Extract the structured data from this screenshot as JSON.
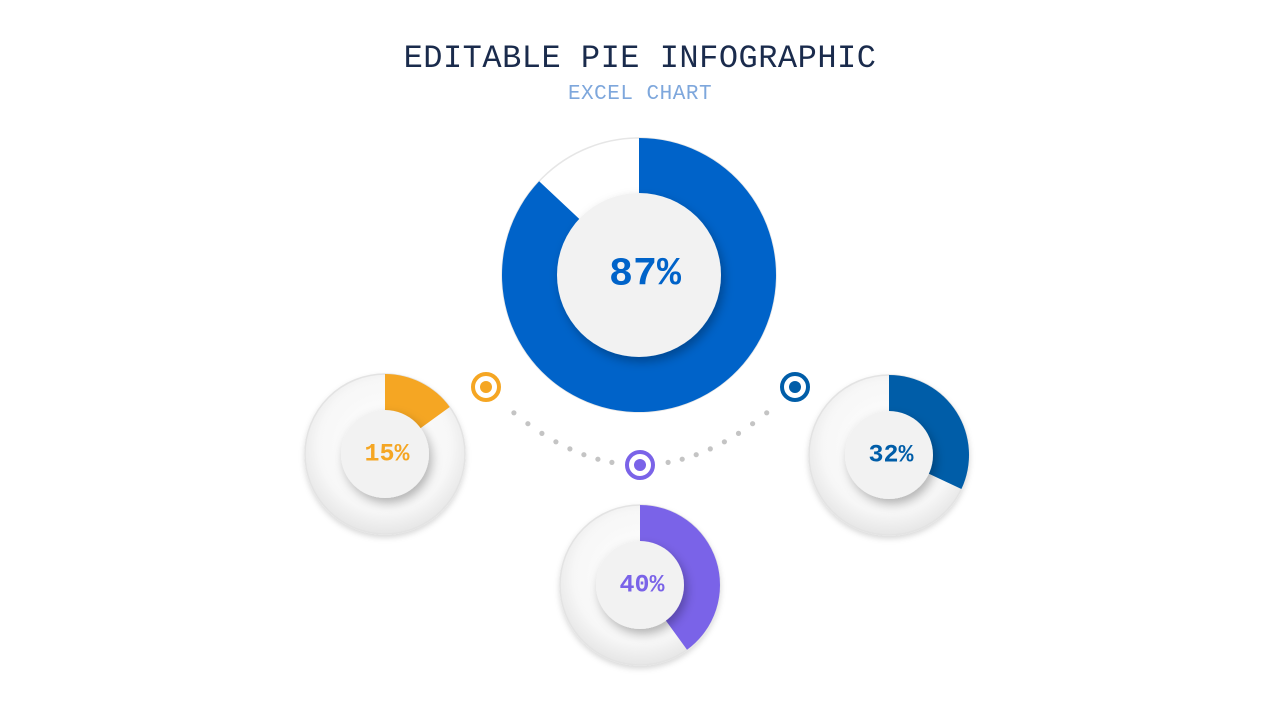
{
  "title": "EDITABLE PIE INFOGRAPHIC",
  "subtitle": "EXCEL CHART",
  "chart_data": [
    {
      "type": "pie",
      "value": 87,
      "label": "87%",
      "color": "#0063c9"
    },
    {
      "type": "pie",
      "value": 15,
      "label": "15%",
      "color": "#f5a623"
    },
    {
      "type": "pie",
      "value": 40,
      "label": "40%",
      "color": "#7a63e8"
    },
    {
      "type": "pie",
      "value": 32,
      "label": "32%",
      "color": "#005da8"
    }
  ],
  "markers": [
    {
      "color": "#f5a623"
    },
    {
      "color": "#7a63e8"
    },
    {
      "color": "#005da8"
    }
  ]
}
